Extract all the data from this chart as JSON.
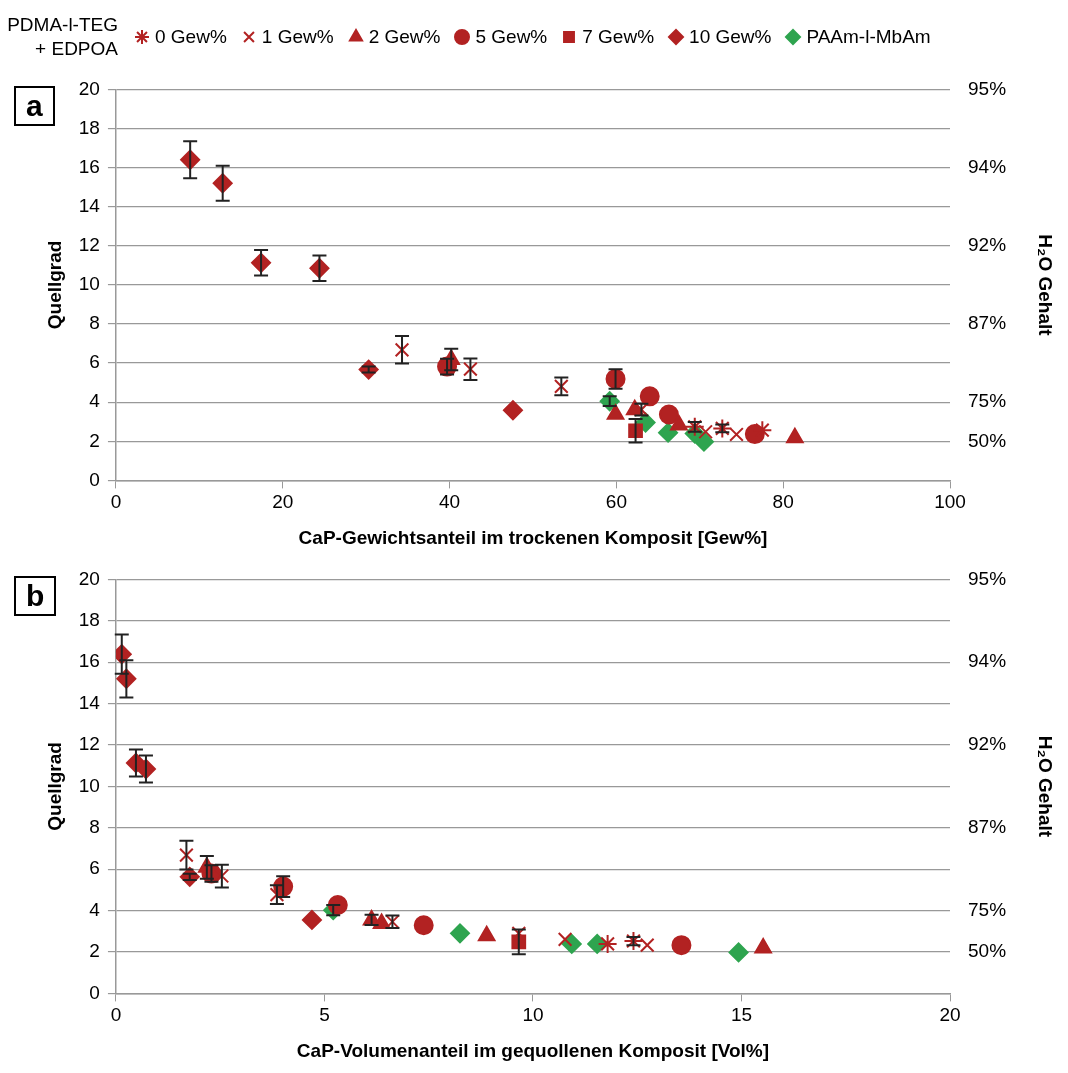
{
  "chart_data": [
    {
      "type": "scatter",
      "annotations": [
        "a",
        "95%",
        "94%",
        "92%",
        "87%",
        "75%",
        "50%"
      ],
      "legend": "top",
      "legend_title": "PDMA-l-TEG + EDPOA",
      "xlabel": "CaP-Gewichtsanteil im trockenen Komposit [Gew%]",
      "ylabel": "Quellgrad",
      "y2label": "H₂O Gehalt",
      "xlim": [
        0,
        100
      ],
      "xticks": [
        0,
        20,
        40,
        60,
        80,
        100
      ],
      "ylim": [
        0,
        20
      ],
      "yticks": [
        0,
        2,
        4,
        6,
        8,
        10,
        12,
        14,
        16,
        18,
        20
      ],
      "grid": "y",
      "series": [
        {
          "name": "0 Gew%",
          "color": "#b22222",
          "x": [
            69.4,
            72.7,
            77.5
          ],
          "values": [
            2.74,
            2.66,
            2.57
          ],
          "errors": [
            0.25,
            0.2,
            null
          ]
        },
        {
          "name": "1 Gew%",
          "color": "#b22222",
          "marker": "cross",
          "x": [
            34.3,
            42.5,
            53.4,
            63.0,
            70.7,
            74.4
          ],
          "values": [
            6.68,
            5.69,
            4.81,
            3.62,
            2.49,
            2.35
          ],
          "errors": [
            0.7,
            0.55,
            0.45,
            0.3,
            null,
            null
          ]
        },
        {
          "name": "2 Gew%",
          "color": "#b22222",
          "marker": "triangle",
          "x": [
            40.2,
            59.9,
            62.2,
            67.5,
            81.4
          ],
          "values": [
            6.18,
            3.38,
            3.62,
            2.83,
            2.18
          ],
          "errors": [
            0.55,
            null,
            null,
            null,
            null
          ]
        },
        {
          "name": "5 Gew%",
          "color": "#b22222",
          "marker": "circle",
          "x": [
            39.7,
            59.9,
            64.0,
            66.3,
            76.6
          ],
          "values": [
            5.82,
            5.19,
            4.3,
            3.37,
            2.37
          ],
          "errors": [
            0.4,
            0.5,
            null,
            null,
            null
          ]
        },
        {
          "name": "7 Gew%",
          "color": "#b22222",
          "marker": "square",
          "x": [
            62.3
          ],
          "values": [
            2.54
          ],
          "errors": [
            0.6
          ]
        },
        {
          "name": "10 Gew%",
          "color": "#b22222",
          "marker": "diamond",
          "x": [
            8.9,
            12.8,
            17.4,
            24.4,
            30.3,
            47.6
          ],
          "values": [
            16.4,
            15.2,
            11.13,
            10.85,
            5.67,
            3.59
          ],
          "errors": [
            0.95,
            0.9,
            0.65,
            0.65,
            0.15,
            null
          ]
        },
        {
          "name": "PAAm-l-MbAm",
          "color": "#2ea44f",
          "marker": "diamond",
          "x": [
            59.2,
            63.5,
            66.2,
            69.4,
            70.5
          ],
          "values": [
            4.05,
            2.96,
            2.44,
            2.4,
            1.98
          ],
          "errors": [
            0.25,
            null,
            null,
            null,
            null
          ]
        }
      ]
    },
    {
      "type": "scatter",
      "annotations": [
        "b",
        "95%",
        "94%",
        "92%",
        "87%",
        "75%",
        "50%"
      ],
      "legend": false,
      "xlabel": "CaP-Volumenanteil im gequollenen Komposit [Vol%]",
      "ylabel": "Quellgrad",
      "y2label": "H₂O Gehalt",
      "xlim": [
        0,
        20
      ],
      "xticks": [
        0,
        5,
        10,
        15,
        20
      ],
      "ylim": [
        0,
        20
      ],
      "yticks": [
        0,
        2,
        4,
        6,
        8,
        10,
        12,
        14,
        16,
        18,
        20
      ],
      "grid": "y",
      "series": [
        {
          "color": "#b22222",
          "x": [
            11.79,
            12.41
          ],
          "values": [
            2.39,
            2.53
          ],
          "errors": [
            null,
            0.2
          ]
        },
        {
          "color": "#b22222",
          "marker": "cross",
          "x": [
            1.69,
            2.54,
            3.86,
            6.63,
            9.66,
            10.77,
            12.74
          ],
          "values": [
            6.68,
            5.67,
            4.77,
            3.46,
            2.9,
            2.61,
            2.33
          ],
          "errors": [
            0.7,
            0.55,
            0.45,
            0.3,
            null,
            null,
            null
          ]
        },
        {
          "color": "#b22222",
          "marker": "triangle",
          "x": [
            2.18,
            6.13,
            6.37,
            8.89,
            15.52
          ],
          "values": [
            6.09,
            3.55,
            3.38,
            2.78,
            2.19
          ],
          "errors": [
            0.55,
            0.25,
            null,
            null,
            null
          ]
        },
        {
          "color": "#b22222",
          "marker": "circle",
          "x": [
            2.29,
            4.01,
            5.32,
            7.38,
            13.56
          ],
          "values": [
            5.79,
            5.16,
            4.27,
            3.29,
            2.33
          ],
          "errors": [
            0.4,
            0.5,
            null,
            null,
            null
          ]
        },
        {
          "color": "#b22222",
          "marker": "square",
          "x": [
            9.66
          ],
          "values": [
            2.49
          ],
          "errors": [
            0.6
          ]
        },
        {
          "color": "#b22222",
          "marker": "diamond",
          "x": [
            0.14,
            0.25,
            0.48,
            0.72,
            1.77,
            4.7
          ],
          "values": [
            16.39,
            15.2,
            11.13,
            10.84,
            5.63,
            3.55
          ],
          "errors": [
            0.95,
            0.9,
            0.65,
            0.65,
            0.15,
            null
          ]
        },
        {
          "color": "#2ea44f",
          "marker": "diamond",
          "x": [
            5.21,
            8.25,
            10.93,
            11.54,
            14.93
          ],
          "values": [
            4.02,
            2.9,
            2.39,
            2.39,
            1.98
          ],
          "errors": [
            0.25,
            null,
            null,
            null,
            null
          ]
        }
      ]
    }
  ]
}
